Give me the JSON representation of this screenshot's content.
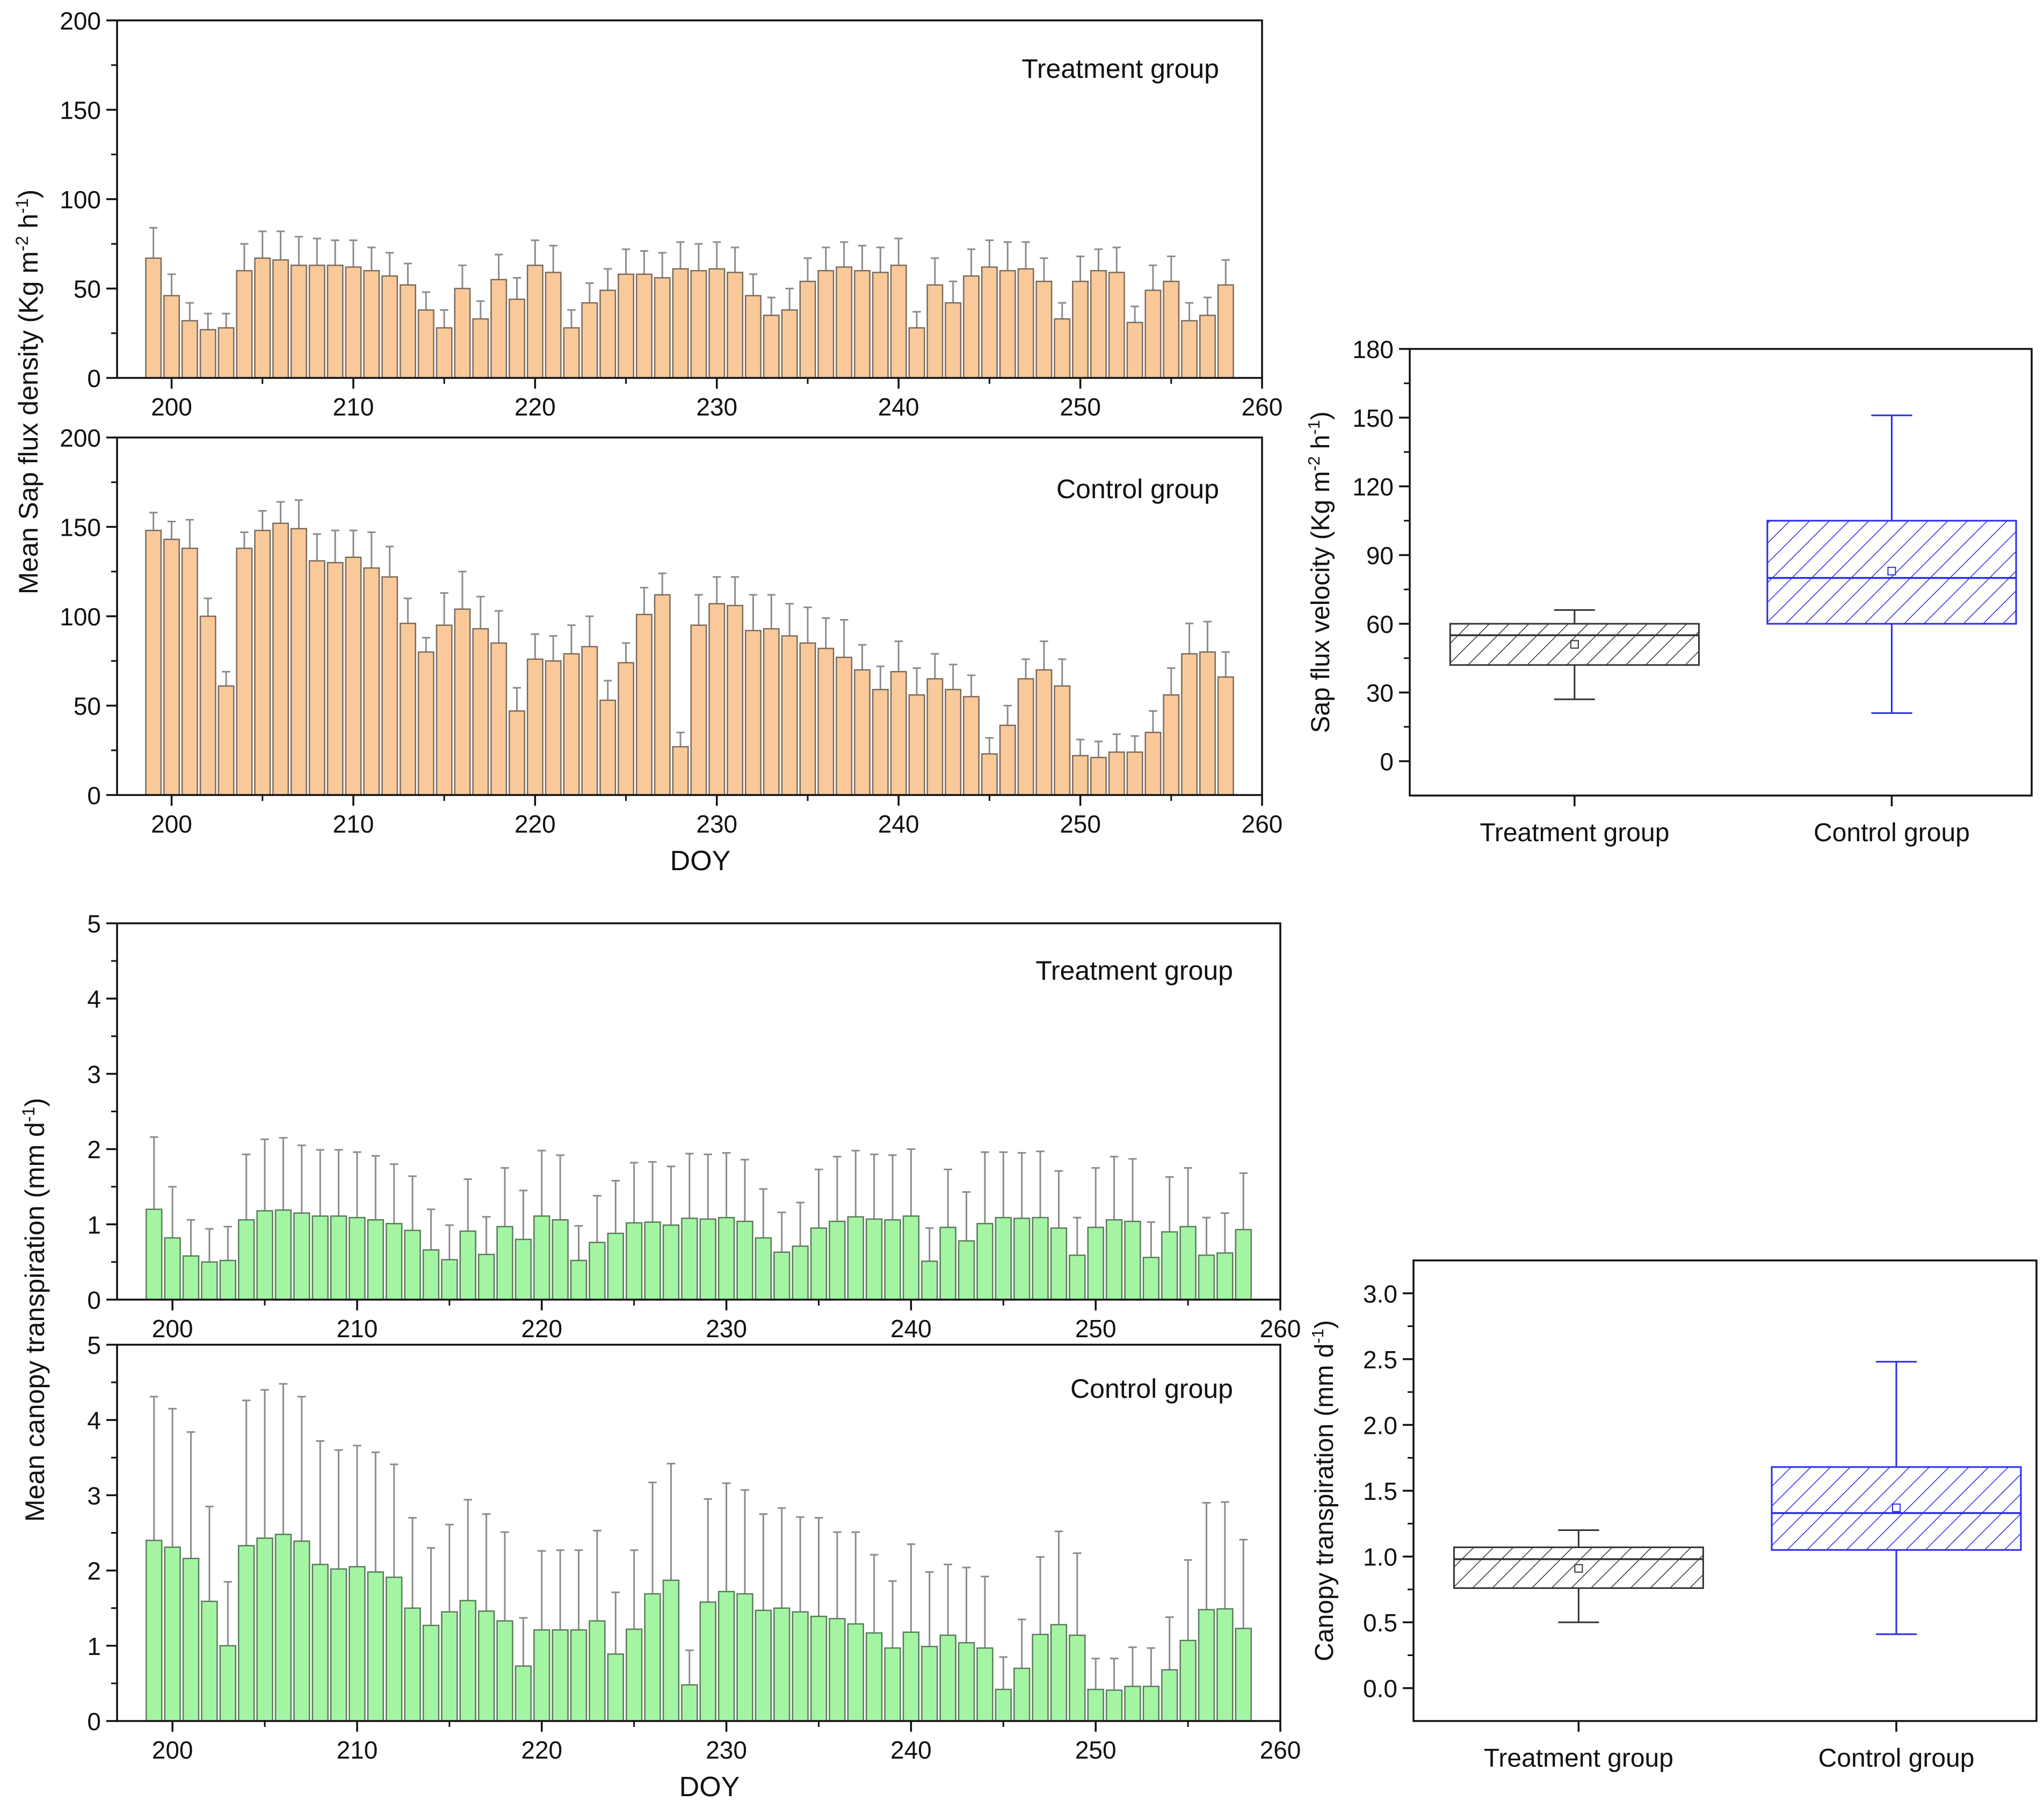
{
  "chart_data": [
    {
      "id": "sap-treatment",
      "type": "bar",
      "label": "Treatment group",
      "xlabel": "",
      "xlim": [
        197,
        260
      ],
      "xticks": [
        200,
        210,
        220,
        230,
        240,
        250,
        260
      ],
      "ylim": [
        0,
        200
      ],
      "yticks": [
        0,
        50,
        100,
        150,
        200
      ],
      "x_start": 199,
      "values": [
        67,
        46,
        32,
        27,
        28,
        60,
        67,
        66,
        63,
        63,
        63,
        62,
        60,
        57,
        52,
        38,
        28,
        50,
        33,
        55,
        44,
        63,
        59,
        28,
        42,
        49,
        58,
        58,
        56,
        61,
        60,
        61,
        59,
        46,
        35,
        38,
        54,
        60,
        62,
        60,
        59,
        63,
        28,
        52,
        42,
        57,
        62,
        60,
        61,
        54,
        33,
        54,
        60,
        59,
        31,
        49,
        54,
        32,
        35,
        52
      ],
      "errors": [
        17,
        12,
        10,
        9,
        8,
        15,
        15,
        16,
        16,
        15,
        14,
        15,
        13,
        13,
        12,
        10,
        10,
        13,
        10,
        14,
        12,
        14,
        15,
        10,
        11,
        12,
        14,
        13,
        14,
        15,
        15,
        15,
        14,
        12,
        10,
        12,
        13,
        13,
        14,
        14,
        14,
        15,
        9,
        15,
        12,
        15,
        15,
        16,
        15,
        13,
        9,
        14,
        12,
        14,
        9,
        14,
        14,
        10,
        10,
        14
      ],
      "fill": "#f9c999",
      "edge": "#7a6b5d"
    },
    {
      "id": "sap-control",
      "type": "bar",
      "label": "Control group",
      "xlabel": "DOY",
      "xlim": [
        197,
        260
      ],
      "xticks": [
        200,
        210,
        220,
        230,
        240,
        250,
        260
      ],
      "ylim": [
        0,
        200
      ],
      "yticks": [
        0,
        50,
        100,
        150,
        200
      ],
      "x_start": 199,
      "values": [
        148,
        143,
        138,
        100,
        61,
        138,
        148,
        152,
        149,
        131,
        130,
        133,
        127,
        122,
        96,
        80,
        95,
        104,
        93,
        85,
        47,
        76,
        75,
        79,
        83,
        53,
        74,
        101,
        112,
        27,
        95,
        107,
        106,
        92,
        93,
        89,
        85,
        82,
        77,
        70,
        59,
        69,
        56,
        65,
        59,
        55,
        23,
        39,
        65,
        70,
        61,
        22,
        21,
        24,
        24,
        35,
        56,
        79,
        80,
        66
      ],
      "errors": [
        10,
        10,
        16,
        10,
        8,
        9,
        11,
        12,
        16,
        15,
        18,
        15,
        20,
        17,
        14,
        8,
        18,
        21,
        18,
        18,
        13,
        14,
        14,
        16,
        17,
        11,
        11,
        15,
        12,
        8,
        17,
        15,
        16,
        20,
        19,
        18,
        20,
        17,
        21,
        14,
        13,
        17,
        15,
        14,
        14,
        12,
        9,
        11,
        11,
        16,
        15,
        9,
        9,
        10,
        9,
        12,
        15,
        17,
        17,
        14
      ],
      "fill": "#f9c999",
      "edge": "#7a6b5d"
    },
    {
      "id": "sap-box",
      "type": "box",
      "categories": [
        "Treatment group",
        "Control group"
      ],
      "ylabel_main": "Sap flux velocity (Kg m",
      "ylabel_sup1": "-2",
      "ylabel_mid": " h",
      "ylabel_sup2": "-1",
      "ylabel_end": ")",
      "ylim": [
        -15,
        180
      ],
      "yticks": [
        0,
        30,
        60,
        90,
        120,
        150,
        180
      ],
      "boxes": [
        {
          "name": "Treatment group",
          "q1": 42,
          "median": 55,
          "q3": 60,
          "whisker_low": 27,
          "whisker_high": 66,
          "mean": 51,
          "color": "#333333"
        },
        {
          "name": "Control group",
          "q1": 60,
          "median": 80,
          "q3": 105,
          "whisker_low": 21,
          "whisker_high": 151,
          "mean": 83,
          "color": "#2a2af2"
        }
      ]
    },
    {
      "id": "ct-treatment",
      "type": "bar",
      "label": "Treatment group",
      "xlabel": "",
      "xlim": [
        197,
        260
      ],
      "xticks": [
        200,
        210,
        220,
        230,
        240,
        250,
        260
      ],
      "ylim": [
        0,
        5
      ],
      "yticks": [
        0,
        1,
        2,
        3,
        4,
        5
      ],
      "x_start": 199,
      "values": [
        1.2,
        0.82,
        0.58,
        0.5,
        0.52,
        1.06,
        1.18,
        1.19,
        1.15,
        1.11,
        1.11,
        1.09,
        1.06,
        1.01,
        0.92,
        0.66,
        0.53,
        0.91,
        0.6,
        0.97,
        0.8,
        1.11,
        1.06,
        0.52,
        0.76,
        0.88,
        1.02,
        1.03,
        0.99,
        1.08,
        1.07,
        1.09,
        1.04,
        0.82,
        0.63,
        0.71,
        0.95,
        1.04,
        1.1,
        1.07,
        1.06,
        1.11,
        0.51,
        0.96,
        0.78,
        1.01,
        1.09,
        1.08,
        1.09,
        0.95,
        0.59,
        0.96,
        1.06,
        1.04,
        0.56,
        0.9,
        0.97,
        0.59,
        0.62,
        0.93
      ],
      "errors": [
        0.96,
        0.68,
        0.48,
        0.44,
        0.45,
        0.87,
        0.95,
        0.96,
        0.9,
        0.88,
        0.88,
        0.87,
        0.85,
        0.79,
        0.72,
        0.54,
        0.46,
        0.69,
        0.5,
        0.78,
        0.65,
        0.87,
        0.86,
        0.46,
        0.62,
        0.7,
        0.8,
        0.8,
        0.78,
        0.86,
        0.86,
        0.86,
        0.82,
        0.65,
        0.53,
        0.58,
        0.78,
        0.86,
        0.88,
        0.86,
        0.86,
        0.89,
        0.44,
        0.77,
        0.65,
        0.95,
        0.87,
        0.87,
        0.88,
        0.76,
        0.5,
        0.79,
        0.84,
        0.83,
        0.47,
        0.73,
        0.78,
        0.5,
        0.53,
        0.75
      ],
      "fill": "#a3f5a3",
      "edge": "#5b7a5b"
    },
    {
      "id": "ct-control",
      "type": "bar",
      "label": "Control group",
      "xlabel": "DOY",
      "xlim": [
        197,
        260
      ],
      "xticks": [
        200,
        210,
        220,
        230,
        240,
        250,
        260
      ],
      "ylim": [
        0,
        5
      ],
      "yticks": [
        0,
        1,
        2,
        3,
        4,
        5
      ],
      "x_start": 199,
      "values": [
        2.4,
        2.31,
        2.16,
        1.59,
        1.0,
        2.33,
        2.43,
        2.48,
        2.39,
        2.08,
        2.02,
        2.05,
        1.98,
        1.91,
        1.5,
        1.27,
        1.45,
        1.6,
        1.46,
        1.33,
        0.73,
        1.21,
        1.21,
        1.21,
        1.33,
        0.89,
        1.22,
        1.69,
        1.87,
        0.48,
        1.58,
        1.72,
        1.69,
        1.47,
        1.5,
        1.45,
        1.39,
        1.36,
        1.29,
        1.17,
        0.97,
        1.18,
        0.99,
        1.14,
        1.04,
        0.97,
        0.42,
        0.7,
        1.15,
        1.28,
        1.14,
        0.42,
        0.41,
        0.46,
        0.46,
        0.68,
        1.07,
        1.48,
        1.49,
        1.23
      ],
      "errors": [
        1.91,
        1.84,
        1.68,
        1.26,
        0.85,
        1.93,
        1.97,
        2.0,
        1.92,
        1.64,
        1.58,
        1.61,
        1.59,
        1.5,
        1.2,
        1.03,
        1.16,
        1.34,
        1.29,
        1.18,
        0.64,
        1.05,
        1.06,
        1.06,
        1.2,
        0.82,
        1.05,
        1.48,
        1.55,
        0.46,
        1.37,
        1.44,
        1.38,
        1.28,
        1.33,
        1.26,
        1.31,
        1.15,
        1.22,
        1.04,
        0.89,
        1.17,
        0.99,
        0.94,
        1.0,
        0.95,
        0.43,
        0.65,
        1.03,
        1.24,
        1.09,
        0.41,
        0.42,
        0.52,
        0.51,
        0.7,
        1.07,
        1.42,
        1.42,
        1.18
      ],
      "fill": "#a3f5a3",
      "edge": "#5b7a5b"
    },
    {
      "id": "ct-box",
      "type": "box",
      "categories": [
        "Treatment group",
        "Control group"
      ],
      "ylabel_main": "Canopy transpiration (mm d",
      "ylabel_sup1": "-1",
      "ylabel_mid": "",
      "ylabel_sup2": "",
      "ylabel_end": ")",
      "ylim": [
        -0.25,
        3.25
      ],
      "yticks": [
        0.0,
        0.5,
        1.0,
        1.5,
        2.0,
        2.5,
        3.0
      ],
      "boxes": [
        {
          "name": "Treatment group",
          "q1": 0.76,
          "median": 0.98,
          "q3": 1.07,
          "whisker_low": 0.5,
          "whisker_high": 1.2,
          "mean": 0.91,
          "color": "#333333"
        },
        {
          "name": "Control group",
          "q1": 1.05,
          "median": 1.33,
          "q3": 1.68,
          "whisker_low": 0.41,
          "whisker_high": 2.48,
          "mean": 1.37,
          "color": "#2a2af2"
        }
      ]
    }
  ],
  "shared_labels": {
    "sap_ylabel_main": "Mean Sap flux density (Kg m",
    "sap_ylabel_sup1": "-2",
    "sap_ylabel_mid": " h",
    "sap_ylabel_sup2": "-1",
    "sap_ylabel_end": ")",
    "ct_ylabel_main": "Mean canopy transpiration (mm d",
    "ct_ylabel_sup1": "-1",
    "ct_ylabel_end": ")"
  }
}
